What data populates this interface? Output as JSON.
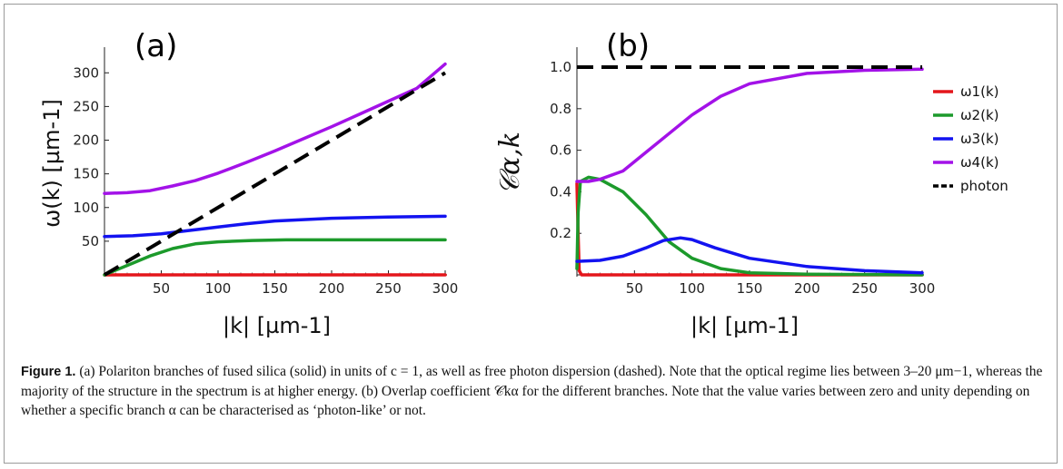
{
  "chart_data": [
    {
      "type": "line",
      "panel_label": "(a)",
      "xlabel": "|k|  [µm-1]",
      "ylabel": "ω(k)  [µm-1]",
      "xlim": [
        0,
        300
      ],
      "ylim": [
        0,
        330
      ],
      "xticks": [
        50,
        100,
        150,
        200,
        250,
        300
      ],
      "yticks": [
        50,
        100,
        150,
        200,
        250,
        300
      ],
      "series": [
        {
          "key": "w1",
          "color": "#e4161b",
          "dash": false,
          "points": [
            [
              0,
              0
            ],
            [
              300,
              0
            ]
          ]
        },
        {
          "key": "w2",
          "color": "#1c9a2b",
          "dash": false,
          "points": [
            [
              0,
              0
            ],
            [
              20,
              14
            ],
            [
              40,
              28
            ],
            [
              60,
              39
            ],
            [
              80,
              46
            ],
            [
              100,
              49
            ],
            [
              130,
              51
            ],
            [
              160,
              52
            ],
            [
              200,
              52
            ],
            [
              250,
              52
            ],
            [
              300,
              52
            ]
          ]
        },
        {
          "key": "w3",
          "color": "#1313f0",
          "dash": false,
          "points": [
            [
              0,
              57
            ],
            [
              25,
              58
            ],
            [
              50,
              61
            ],
            [
              75,
              66
            ],
            [
              100,
              71
            ],
            [
              125,
              76
            ],
            [
              150,
              80
            ],
            [
              175,
              82
            ],
            [
              200,
              84
            ],
            [
              250,
              86
            ],
            [
              300,
              87
            ]
          ]
        },
        {
          "key": "w4",
          "color": "#a312e8",
          "dash": false,
          "points": [
            [
              0,
              121
            ],
            [
              20,
              122
            ],
            [
              40,
              125
            ],
            [
              60,
              132
            ],
            [
              80,
              140
            ],
            [
              100,
              151
            ],
            [
              125,
              167
            ],
            [
              150,
              184
            ],
            [
              175,
              202
            ],
            [
              200,
              220
            ],
            [
              225,
              239
            ],
            [
              250,
              258
            ],
            [
              275,
              277
            ],
            [
              300,
              313
            ]
          ]
        },
        {
          "key": "photon",
          "color": "#000000",
          "dash": true,
          "points": [
            [
              0,
              0
            ],
            [
              300,
              300
            ]
          ]
        }
      ]
    },
    {
      "type": "line",
      "panel_label": "(b)",
      "xlabel": "|k|  [µm-1]",
      "ylabel": "𝒞α,k",
      "xlim": [
        0,
        300
      ],
      "ylim": [
        0,
        1.07
      ],
      "xticks": [
        50,
        100,
        150,
        200,
        250,
        300
      ],
      "yticks": [
        0.2,
        0.4,
        0.6,
        0.8,
        1.0
      ],
      "ytick_labels": [
        "0.2",
        "0.4",
        "0.6",
        "0.8",
        "1.0"
      ],
      "legend_position": "right",
      "series": [
        {
          "key": "w1",
          "name": "ω1(k)",
          "color": "#e4161b",
          "dash": false,
          "points": [
            [
              0,
              0.44
            ],
            [
              1,
              0.2
            ],
            [
              2,
              0.02
            ],
            [
              4,
              0
            ],
            [
              300,
              0
            ]
          ]
        },
        {
          "key": "w2",
          "name": "ω2(k)",
          "color": "#1c9a2b",
          "dash": false,
          "points": [
            [
              0,
              0.03
            ],
            [
              1,
              0.3
            ],
            [
              3,
              0.45
            ],
            [
              10,
              0.47
            ],
            [
              20,
              0.46
            ],
            [
              40,
              0.4
            ],
            [
              60,
              0.29
            ],
            [
              80,
              0.16
            ],
            [
              100,
              0.08
            ],
            [
              125,
              0.03
            ],
            [
              150,
              0.01
            ],
            [
              200,
              0.003
            ],
            [
              300,
              0
            ]
          ]
        },
        {
          "key": "w3",
          "name": "ω3(k)",
          "color": "#1313f0",
          "dash": false,
          "points": [
            [
              0,
              0.065
            ],
            [
              20,
              0.07
            ],
            [
              40,
              0.09
            ],
            [
              60,
              0.13
            ],
            [
              75,
              0.165
            ],
            [
              90,
              0.178
            ],
            [
              100,
              0.17
            ],
            [
              120,
              0.13
            ],
            [
              150,
              0.08
            ],
            [
              200,
              0.04
            ],
            [
              250,
              0.02
            ],
            [
              300,
              0.01
            ]
          ]
        },
        {
          "key": "w4",
          "name": "ω4(k)",
          "color": "#a312e8",
          "dash": false,
          "points": [
            [
              0,
              0.45
            ],
            [
              10,
              0.45
            ],
            [
              20,
              0.46
            ],
            [
              40,
              0.5
            ],
            [
              60,
              0.59
            ],
            [
              80,
              0.68
            ],
            [
              100,
              0.77
            ],
            [
              125,
              0.86
            ],
            [
              150,
              0.92
            ],
            [
              200,
              0.97
            ],
            [
              250,
              0.985
            ],
            [
              300,
              0.99
            ]
          ]
        },
        {
          "key": "photon",
          "name": "photon",
          "color": "#000000",
          "dash": true,
          "points": [
            [
              0,
              1.0
            ],
            [
              300,
              1.0
            ]
          ]
        }
      ]
    }
  ],
  "caption": {
    "label": "Figure 1.",
    "text": "(a) Polariton branches of fused silica (solid) in units of c = 1, as well as free photon dispersion (dashed). Note that the optical regime lies between 3–20 μm−1, whereas the majority of the structure in the spectrum is at higher energy. (b) Overlap coefficient 𝒞kα for the different branches. Note that the value varies between zero and unity depending on whether a specific branch α can be characterised as ‘photon-like’ or not."
  }
}
